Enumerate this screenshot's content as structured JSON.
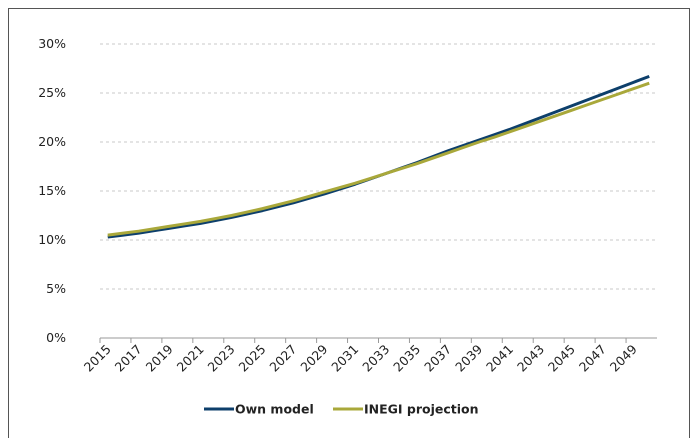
{
  "chart_data": {
    "type": "line",
    "x": [
      2015,
      2016,
      2017,
      2018,
      2019,
      2020,
      2021,
      2022,
      2023,
      2024,
      2025,
      2026,
      2027,
      2028,
      2029,
      2030,
      2031,
      2032,
      2033,
      2034,
      2035,
      2036,
      2037,
      2038,
      2039,
      2040,
      2041,
      2042,
      2043,
      2044,
      2045,
      2046,
      2047,
      2048,
      2049,
      2050
    ],
    "xlim": [
      2014.5,
      2050.5
    ],
    "xticks": [
      2015,
      2017,
      2019,
      2021,
      2023,
      2025,
      2027,
      2029,
      2031,
      2033,
      2035,
      2037,
      2039,
      2041,
      2043,
      2045,
      2047,
      2049
    ],
    "ylim": [
      0,
      30
    ],
    "yticks": [
      {
        "value": 0,
        "label": "0%"
      },
      {
        "value": 5,
        "label": "5%"
      },
      {
        "value": 10,
        "label": "10%"
      },
      {
        "value": 15,
        "label": "15%"
      },
      {
        "value": 20,
        "label": "20%"
      },
      {
        "value": 25,
        "label": "25%"
      },
      {
        "value": 30,
        "label": "30%"
      }
    ],
    "grid": true,
    "legend": "bottom",
    "series": [
      {
        "name": "Own model",
        "color": "#0d3f6b",
        "values": [
          10.3,
          10.5,
          10.7,
          10.95,
          11.2,
          11.45,
          11.7,
          12.0,
          12.3,
          12.65,
          13.0,
          13.4,
          13.8,
          14.25,
          14.7,
          15.2,
          15.7,
          16.25,
          16.8,
          17.35,
          17.9,
          18.5,
          19.1,
          19.65,
          20.2,
          20.75,
          21.3,
          21.9,
          22.5,
          23.1,
          23.7,
          24.3,
          24.9,
          25.5,
          26.1,
          26.7
        ]
      },
      {
        "name": "INEGI projection",
        "color": "#a9a83a",
        "values": [
          10.5,
          10.7,
          10.9,
          11.15,
          11.4,
          11.65,
          11.9,
          12.2,
          12.5,
          12.85,
          13.2,
          13.6,
          14.0,
          14.45,
          14.9,
          15.35,
          15.8,
          16.3,
          16.8,
          17.3,
          17.8,
          18.35,
          18.9,
          19.45,
          20.0,
          20.5,
          21.05,
          21.6,
          22.15,
          22.7,
          23.25,
          23.8,
          24.35,
          24.9,
          25.45,
          26.0
        ]
      }
    ]
  }
}
